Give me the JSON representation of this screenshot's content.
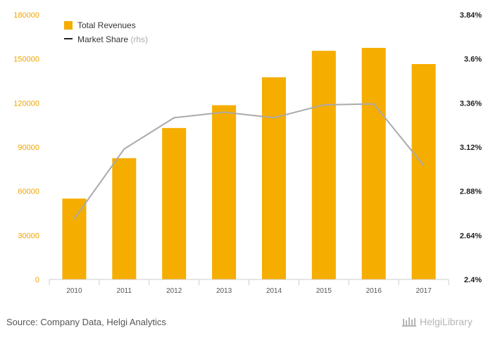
{
  "chart_data": {
    "type": "bar",
    "categories": [
      "2010",
      "2011",
      "2012",
      "2013",
      "2014",
      "2015",
      "2016",
      "2017"
    ],
    "series": [
      {
        "name": "Total Revenues",
        "type": "bar",
        "axis": "left",
        "values": [
          55000,
          82500,
          103000,
          118500,
          137500,
          155500,
          157500,
          146500
        ]
      },
      {
        "name": "Market Share",
        "type": "line",
        "axis": "right",
        "values": [
          2.73,
          3.11,
          3.28,
          3.31,
          3.28,
          3.35,
          3.355,
          3.02
        ]
      }
    ],
    "left_axis": {
      "ticks": [
        "0",
        "30000",
        "60000",
        "90000",
        "120000",
        "150000",
        "180000"
      ],
      "ylim": [
        0,
        180000
      ]
    },
    "right_axis": {
      "ticks": [
        "2.4%",
        "2.64%",
        "2.88%",
        "3.12%",
        "3.36%",
        "3.6%",
        "3.84%"
      ],
      "ylim": [
        2.4,
        3.84
      ]
    },
    "legend": {
      "placement": "top-left",
      "items": [
        "Total Revenues",
        "Market Share"
      ],
      "rhs_note": "(rhs)"
    },
    "colors": {
      "bar": "#f5ad00",
      "line": "#aaaaaa",
      "left_ticks": "#f0a500"
    },
    "grid": false
  },
  "footer": {
    "source": "Source: Company Data, Helgi Analytics",
    "brand": "HelgiLibrary"
  }
}
